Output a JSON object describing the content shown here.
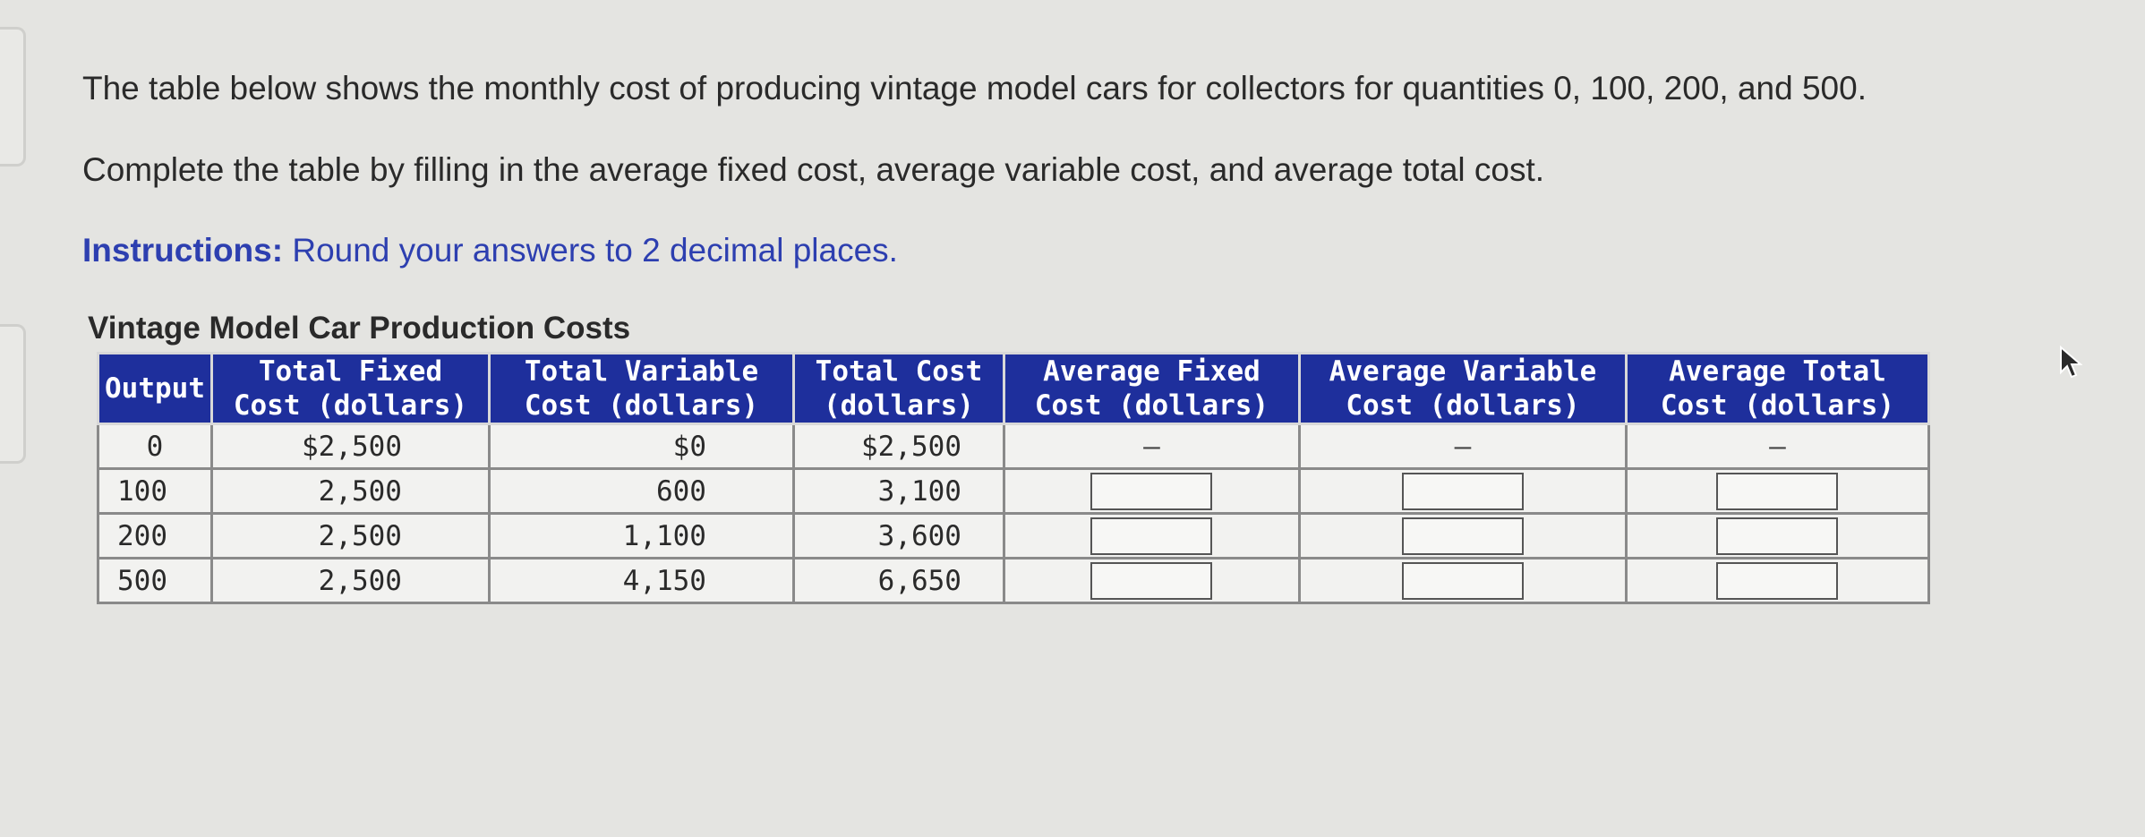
{
  "intro": {
    "line1": "The table below shows the monthly cost of producing vintage model cars for collectors for quantities 0, 100, 200, and 500.",
    "line2": "Complete the table by filling in the average fixed cost, average variable cost, and average total cost.",
    "instructions_label": "Instructions:",
    "instructions_text": " Round your answers to 2 decimal places."
  },
  "table": {
    "caption": "Vintage Model Car Production Costs",
    "headers": [
      "Output",
      "Total Fixed Cost (dollars)",
      "Total Variable Cost (dollars)",
      "Total Cost (dollars)",
      "Average Fixed Cost (dollars)",
      "Average Variable Cost (dollars)",
      "Average Total Cost (dollars)"
    ],
    "rows": [
      {
        "output": "0",
        "tfc": "$2,500",
        "tvc": "$0",
        "tc": "$2,500",
        "afc": "–",
        "avc": "–",
        "atc": "–"
      },
      {
        "output": "100",
        "tfc": "2,500",
        "tvc": "600",
        "tc": "3,100",
        "afc": "",
        "avc": "",
        "atc": ""
      },
      {
        "output": "200",
        "tfc": "2,500",
        "tvc": "1,100",
        "tc": "3,600",
        "afc": "",
        "avc": "",
        "atc": ""
      },
      {
        "output": "500",
        "tfc": "2,500",
        "tvc": "4,150",
        "tc": "6,650",
        "afc": "",
        "avc": "",
        "atc": ""
      }
    ]
  },
  "colors": {
    "header_bg": "#1e2f9c",
    "instructions_text": "#2d3fb0",
    "page_bg": "#e4e4e1"
  },
  "icons": {
    "cursor": "mouse-pointer-icon"
  }
}
